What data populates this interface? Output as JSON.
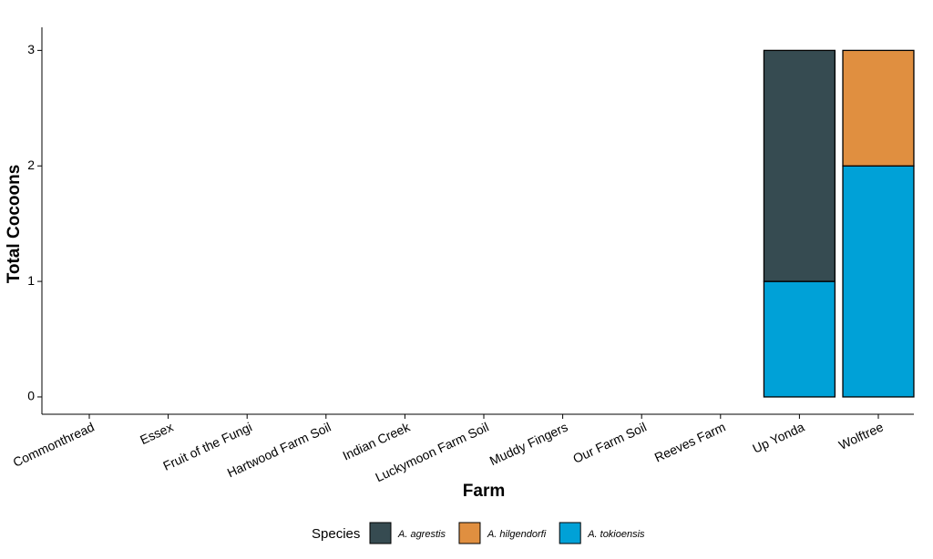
{
  "chart_data": {
    "type": "stacked_bar",
    "x_label": "Farm",
    "y_label": "Total Cocoons",
    "legend_title": "Species",
    "categories": [
      "Commonthread",
      "Essex",
      "Fruit of the Fungi",
      "Hartwood Farm Soil",
      "Indian Creek",
      "Luckymoon Farm Soil",
      "Muddy Fingers",
      "Our Farm Soil",
      "Reeves Farm",
      "Up Yonda",
      "Wolftree"
    ],
    "series": [
      {
        "name": "A. agrestis",
        "color": "#364b51",
        "values": [
          0,
          0,
          0,
          0,
          0,
          0,
          0,
          0,
          0,
          2,
          0
        ]
      },
      {
        "name": "A. hilgendorfi",
        "color": "#e08f40",
        "values": [
          0,
          0,
          0,
          0,
          0,
          0,
          0,
          0,
          0,
          0,
          1
        ]
      },
      {
        "name": "A. tokioensis",
        "color": "#00a1d7",
        "values": [
          0,
          0,
          0,
          0,
          0,
          0,
          0,
          0,
          0,
          1,
          2
        ]
      }
    ],
    "ylim": [
      -0.15,
      3.2
    ],
    "yticks": [
      0,
      1,
      2,
      3
    ],
    "legend_position": "bottom"
  }
}
